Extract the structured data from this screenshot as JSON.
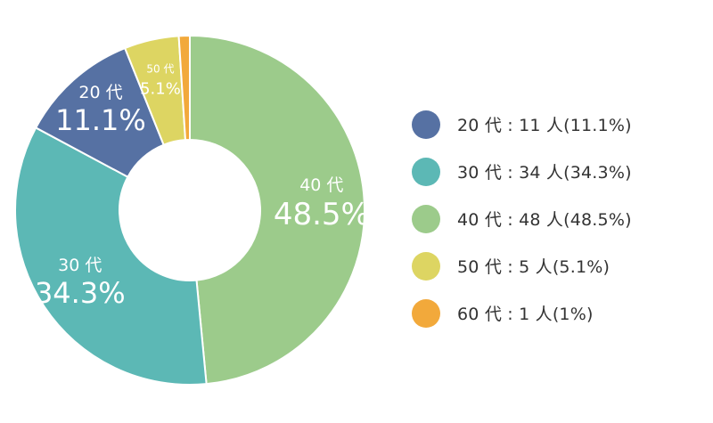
{
  "chart_data": {
    "type": "pie",
    "donut": true,
    "slices": [
      {
        "category": "20 代",
        "count": 11,
        "percent": 11.1,
        "percent_label": "11.1%",
        "legend": "20 代 : 11 人(11.1%)",
        "color": "#5671a3"
      },
      {
        "category": "30 代",
        "count": 34,
        "percent": 34.3,
        "percent_label": "34.3%",
        "legend": "30 代 : 34 人(34.3%)",
        "color": "#5cb8b5"
      },
      {
        "category": "40 代",
        "count": 48,
        "percent": 48.5,
        "percent_label": "48.5%",
        "legend": "40 代 : 48 人(48.5%)",
        "color": "#9ccb8b"
      },
      {
        "category": "50 代",
        "count": 5,
        "percent": 5.1,
        "percent_label": "5.1%",
        "legend": "50 代 : 5 人(5.1%)",
        "color": "#ddd562"
      },
      {
        "category": "60 代",
        "count": 1,
        "percent": 1,
        "percent_label": "",
        "legend": "60 代 : 1 人(1%)",
        "color": "#f2a93b"
      }
    ],
    "legend_position": "right"
  }
}
